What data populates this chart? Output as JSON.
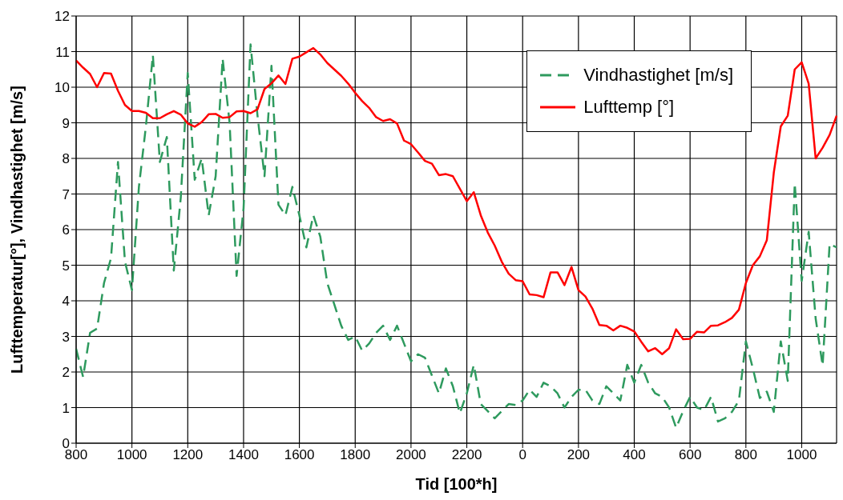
{
  "chart_data": {
    "type": "line",
    "xlabel": "Tid [100*h]",
    "ylabel": "Lufttemperatur[°], Vindhastighet [m/s]",
    "categories": [
      "800",
      null,
      null,
      null,
      null,
      null,
      null,
      null,
      "1000",
      null,
      null,
      null,
      null,
      null,
      null,
      null,
      "1200",
      null,
      null,
      null,
      null,
      null,
      null,
      null,
      "1400",
      null,
      null,
      null,
      null,
      null,
      null,
      null,
      "1600",
      null,
      null,
      null,
      null,
      null,
      null,
      null,
      "1800",
      null,
      null,
      null,
      null,
      null,
      null,
      null,
      "2000",
      null,
      null,
      null,
      null,
      null,
      null,
      null,
      "2200",
      null,
      null,
      null,
      null,
      null,
      null,
      null,
      "0",
      null,
      null,
      null,
      null,
      null,
      null,
      null,
      "200",
      null,
      null,
      null,
      null,
      null,
      null,
      null,
      "400",
      null,
      null,
      null,
      null,
      null,
      null,
      null,
      "600",
      null,
      null,
      null,
      null,
      null,
      null,
      null,
      "800",
      null,
      null,
      null,
      null,
      null,
      null,
      null,
      "1000",
      null,
      null,
      null,
      null,
      null
    ],
    "ylim": [
      0,
      12
    ],
    "yticks": [
      0,
      1,
      2,
      3,
      4,
      5,
      6,
      7,
      8,
      9,
      10,
      11,
      12
    ],
    "grid": true,
    "legend": "top right",
    "marker": "none",
    "series": [
      {
        "name": "Vindhastighet [m/s]",
        "color": "#2e9a5e",
        "line_style": "dashed",
        "values": [
          2.65,
          1.86,
          3.1,
          3.22,
          4.5,
          5.2,
          7.9,
          5.1,
          4.3,
          7.2,
          8.9,
          10.9,
          7.9,
          8.6,
          4.85,
          6.9,
          10.4,
          7.4,
          8.0,
          6.4,
          7.5,
          10.8,
          9.0,
          4.7,
          6.6,
          11.2,
          9.2,
          7.5,
          10.6,
          6.7,
          6.4,
          7.2,
          6.4,
          5.5,
          6.4,
          5.8,
          4.5,
          3.9,
          3.3,
          2.9,
          3.0,
          2.6,
          2.8,
          3.1,
          3.3,
          2.9,
          3.3,
          2.8,
          2.3,
          2.5,
          2.4,
          1.9,
          1.4,
          2.1,
          1.6,
          0.84,
          1.4,
          2.2,
          1.1,
          0.9,
          0.7,
          0.9,
          1.1,
          1.07,
          1.2,
          1.5,
          1.3,
          1.7,
          1.6,
          1.4,
          1.0,
          1.3,
          1.5,
          1.5,
          1.2,
          1.1,
          1.6,
          1.4,
          1.2,
          2.2,
          1.7,
          2.2,
          1.7,
          1.4,
          1.3,
          1.0,
          0.43,
          0.9,
          1.3,
          1.0,
          0.93,
          1.3,
          0.61,
          0.7,
          0.88,
          1.2,
          2.86,
          2.1,
          1.27,
          1.45,
          0.88,
          2.86,
          1.75,
          7.3,
          4.56,
          5.94,
          3.5,
          2.18,
          5.6,
          5.5
        ]
      },
      {
        "name": "Lufttemp [°]",
        "color": "#ff0000",
        "line_style": "solid",
        "values": [
          10.75,
          10.55,
          10.37,
          10.0,
          10.4,
          10.38,
          9.9,
          9.5,
          9.33,
          9.33,
          9.28,
          9.13,
          9.13,
          9.24,
          9.33,
          9.23,
          8.98,
          8.89,
          9.02,
          9.24,
          9.25,
          9.14,
          9.16,
          9.32,
          9.33,
          9.27,
          9.38,
          9.95,
          10.11,
          10.33,
          10.09,
          10.8,
          10.86,
          10.98,
          11.1,
          10.92,
          10.68,
          10.5,
          10.32,
          10.1,
          9.84,
          9.61,
          9.42,
          9.16,
          9.05,
          9.1,
          8.98,
          8.5,
          8.4,
          8.17,
          7.93,
          7.85,
          7.53,
          7.56,
          7.5,
          7.15,
          6.8,
          7.05,
          6.4,
          5.92,
          5.55,
          5.1,
          4.76,
          4.58,
          4.55,
          4.18,
          4.16,
          4.1,
          4.8,
          4.8,
          4.44,
          4.95,
          4.3,
          4.12,
          3.78,
          3.32,
          3.3,
          3.17,
          3.3,
          3.24,
          3.14,
          2.85,
          2.58,
          2.67,
          2.5,
          2.67,
          3.2,
          2.92,
          2.93,
          3.13,
          3.11,
          3.3,
          3.31,
          3.4,
          3.52,
          3.75,
          4.5,
          5.0,
          5.25,
          5.7,
          7.6,
          8.9,
          9.2,
          10.5,
          10.7,
          10.1,
          8.0,
          8.3,
          8.66,
          9.2
        ]
      }
    ]
  }
}
